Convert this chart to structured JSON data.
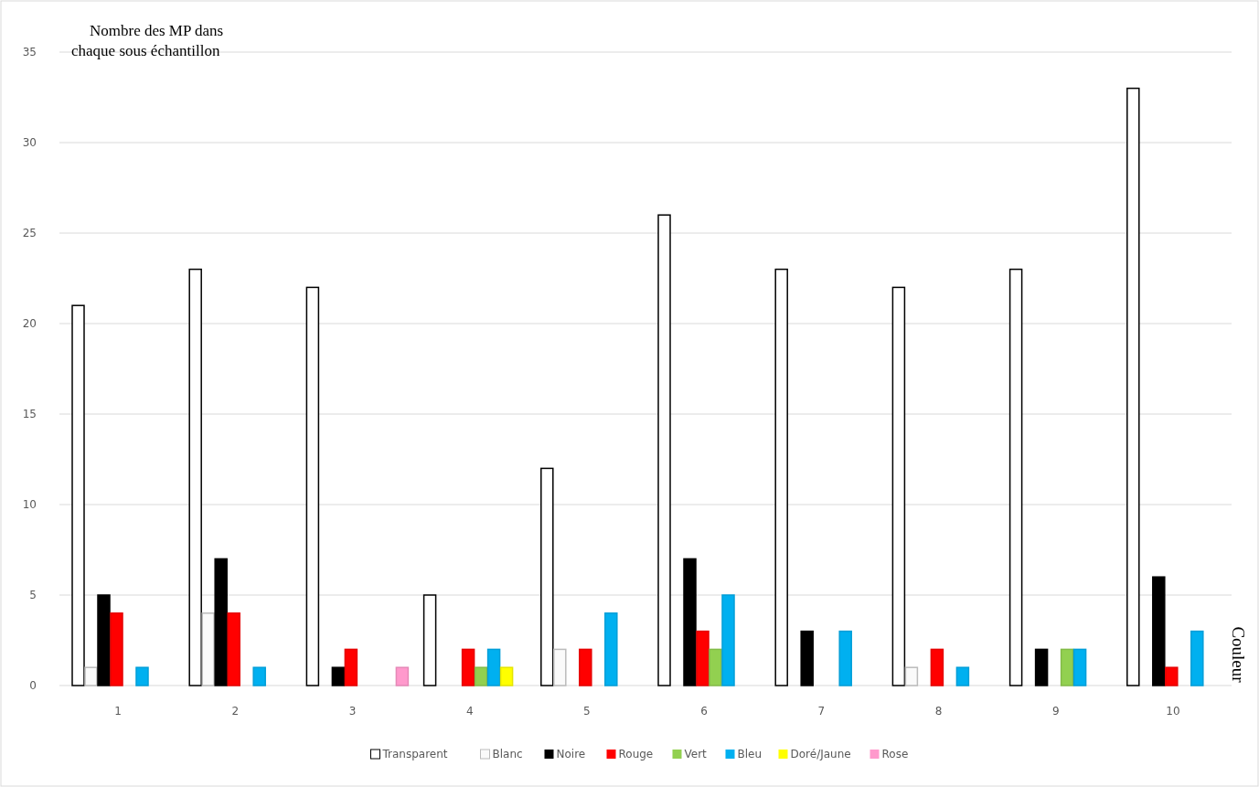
{
  "chart_data": {
    "type": "bar",
    "ylabel": "Nombre des MP dans chaque sous échantillon",
    "annotations": [
      "Couleur"
    ],
    "categories": [
      "1",
      "2",
      "3",
      "4",
      "5",
      "6",
      "7",
      "8",
      "9",
      "10"
    ],
    "ylim": [
      0,
      35
    ],
    "yticks": [
      0,
      5,
      10,
      15,
      20,
      25,
      30,
      35
    ],
    "grid": "y",
    "legend": "bottom",
    "series": [
      {
        "name": "Transparent",
        "color": "#ffffff",
        "values": [
          21,
          23,
          22,
          5,
          12,
          26,
          23,
          22,
          23,
          33
        ]
      },
      {
        "name": "Blanc",
        "color": "#fafafa",
        "values": [
          1,
          4,
          null,
          null,
          2,
          null,
          null,
          1,
          null,
          null
        ]
      },
      {
        "name": "Noire",
        "color": "#000000",
        "values": [
          5,
          7,
          1,
          null,
          null,
          7,
          3,
          null,
          2,
          6
        ]
      },
      {
        "name": "Rouge",
        "color": "#ff0000",
        "values": [
          4,
          4,
          2,
          2,
          2,
          3,
          null,
          2,
          null,
          1
        ]
      },
      {
        "name": "Vert",
        "color": "#92d050",
        "values": [
          null,
          null,
          null,
          1,
          null,
          2,
          null,
          null,
          2,
          null
        ]
      },
      {
        "name": "Bleu",
        "color": "#00b0f0",
        "values": [
          1,
          1,
          null,
          2,
          4,
          5,
          3,
          1,
          2,
          3
        ]
      },
      {
        "name": "Doré/Jaune",
        "color": "#ffff00",
        "values": [
          null,
          null,
          null,
          1,
          null,
          null,
          null,
          null,
          null,
          null
        ]
      },
      {
        "name": "Rose",
        "color": "#ff99cc",
        "values": [
          null,
          null,
          1,
          null,
          null,
          null,
          null,
          null,
          null,
          null
        ]
      }
    ]
  }
}
